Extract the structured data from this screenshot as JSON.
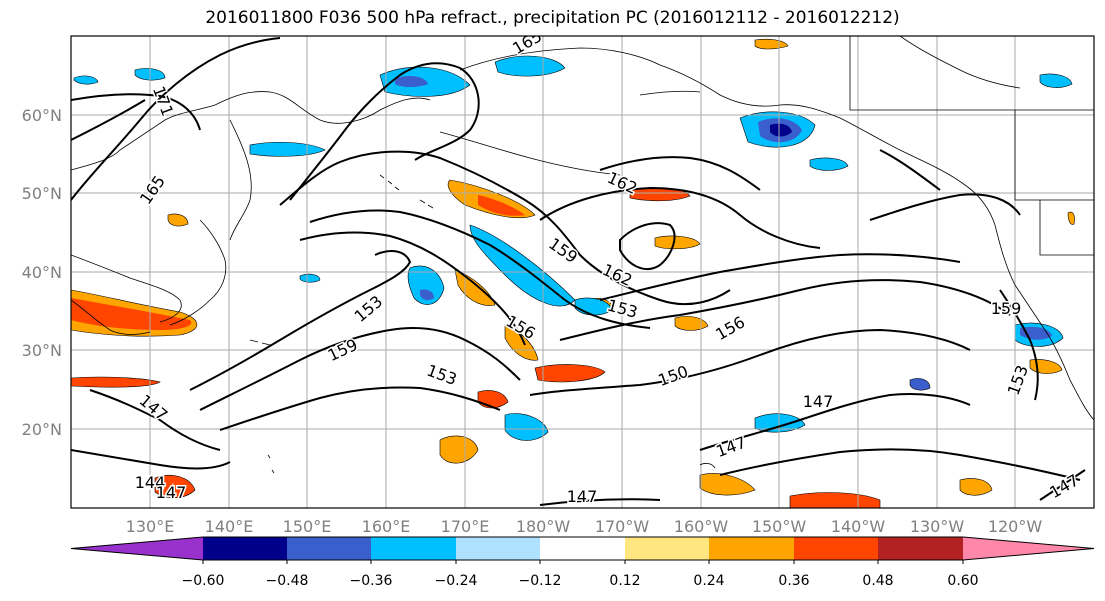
{
  "title": "2016011800 F036 500 hPa refract., precipitation PC (2016012112 - 2016012212)",
  "lat_labels": [
    "60°N",
    "50°N",
    "40°N",
    "30°N",
    "20°N"
  ],
  "lon_labels": [
    "130°E",
    "140°E",
    "150°E",
    "160°E",
    "170°E",
    "180°W",
    "170°W",
    "160°W",
    "150°W",
    "140°W",
    "130°W",
    "120°W"
  ],
  "colorbar": {
    "colors": [
      "#9932cc",
      "#00008b",
      "#3a5fcd",
      "#00bfff",
      "#b0e2ff",
      "#ffffff",
      "#ffe680",
      "#ffa500",
      "#ff4500",
      "#b22222",
      "#ff88aa"
    ],
    "ticks": [
      "−0.60",
      "−0.48",
      "−0.36",
      "−0.24",
      "−0.12",
      "0.12",
      "0.24",
      "0.36",
      "0.48",
      "0.60"
    ]
  },
  "contour_labels": [
    {
      "text": "165"
    },
    {
      "text": "171"
    },
    {
      "text": "165"
    },
    {
      "text": "162"
    },
    {
      "text": "159"
    },
    {
      "text": "162"
    },
    {
      "text": "153"
    },
    {
      "text": "153"
    },
    {
      "text": "156"
    },
    {
      "text": "159"
    },
    {
      "text": "153"
    },
    {
      "text": "156"
    },
    {
      "text": "150"
    },
    {
      "text": "159"
    },
    {
      "text": "153"
    },
    {
      "text": "147"
    },
    {
      "text": "147"
    },
    {
      "text": "147"
    },
    {
      "text": "144"
    },
    {
      "text": "147"
    },
    {
      "text": "147"
    },
    {
      "text": "147"
    }
  ]
}
